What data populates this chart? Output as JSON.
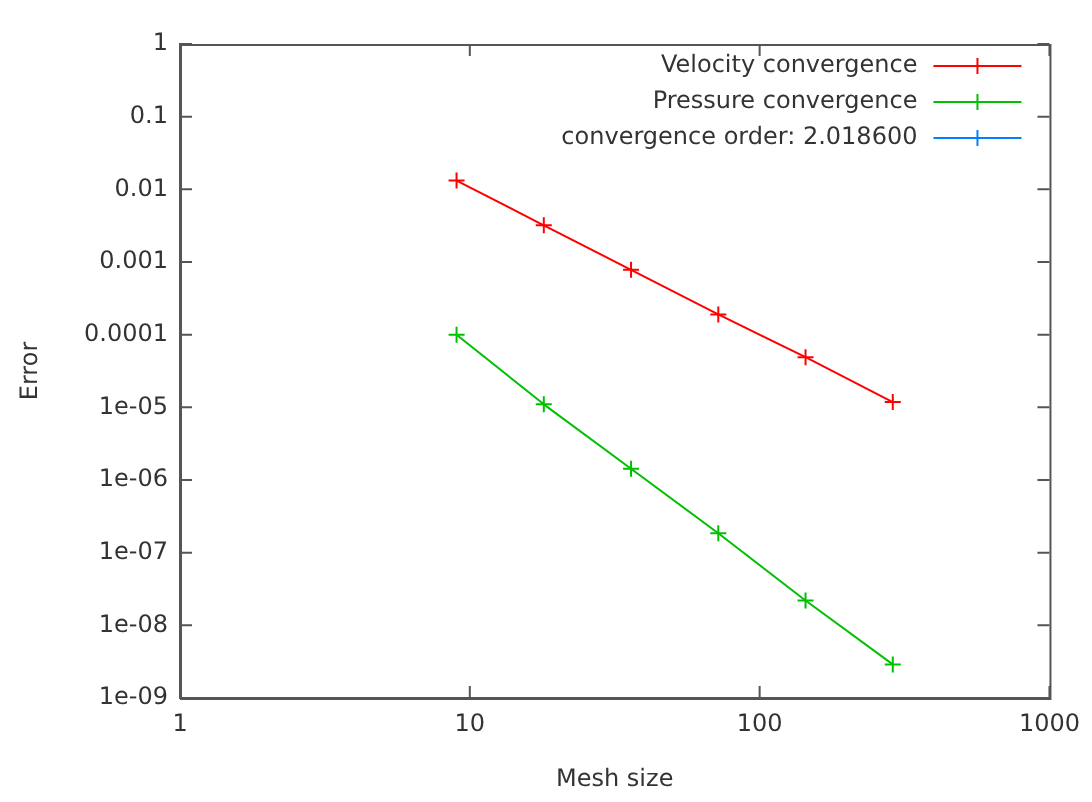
{
  "chart_data": {
    "type": "line",
    "xlabel": "Mesh size",
    "ylabel": "Error",
    "log": "xy",
    "grid": false,
    "legend": "top right",
    "marker": "cross",
    "line_style": "solid",
    "x": [
      9,
      18,
      36,
      72,
      144,
      288
    ],
    "xlim": [
      1,
      1000
    ],
    "xticks": [
      1,
      10,
      100,
      1000
    ],
    "ylim": [
      1e-09,
      1
    ],
    "yticks": [
      1,
      0.1,
      0.01,
      0.001,
      0.0001,
      {
        "value": 1e-05,
        "label": "1e-05"
      },
      {
        "value": 1e-06,
        "label": "1e-06"
      },
      {
        "value": 1e-07,
        "label": "1e-07"
      },
      {
        "value": 1e-08,
        "label": "1e-08"
      },
      {
        "value": 1e-09,
        "label": "1e-09"
      }
    ],
    "series": [
      {
        "name": "Velocity convergence",
        "color": "#ff0000",
        "values": [
          0.0132,
          0.0032,
          0.00078,
          0.00019,
          4.9e-05,
          1.18e-05
        ]
      },
      {
        "name": "Pressure convergence",
        "color": "#00c000",
        "values": [
          0.0001,
          1.1e-05,
          1.43e-06,
          1.85e-07,
          2.2e-08,
          2.9e-09
        ]
      },
      {
        "name": "convergence order: 2.018600",
        "color": "#0080ff",
        "values": [
          null,
          null,
          null,
          null,
          null,
          null
        ]
      }
    ]
  }
}
